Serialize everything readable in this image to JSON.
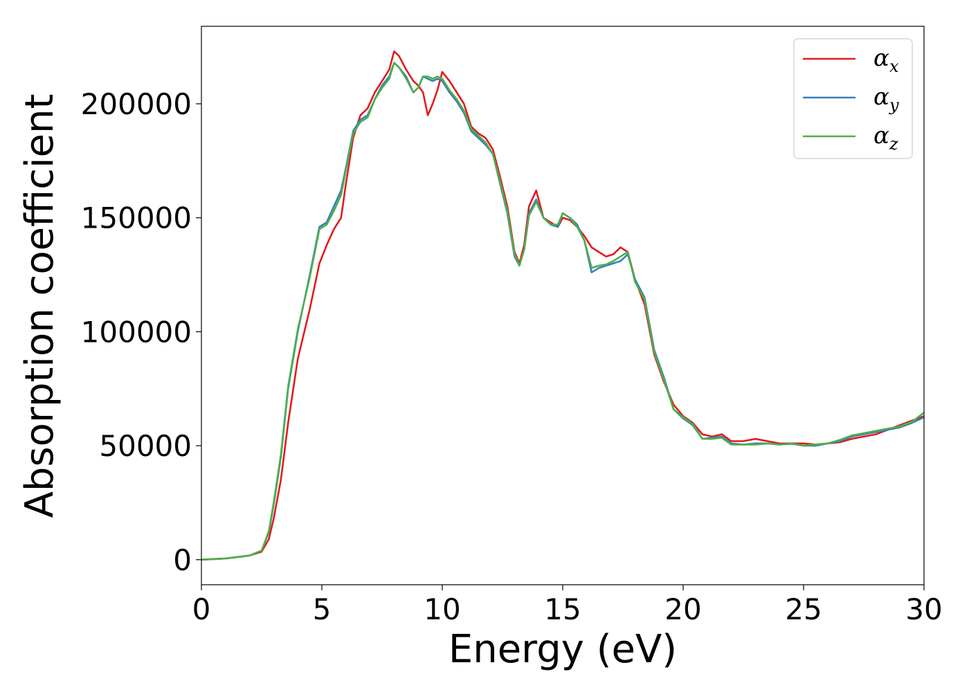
{
  "chart_data": {
    "type": "line",
    "xlabel": "Energy (eV)",
    "ylabel": "Absorption coefficient",
    "xlim": [
      0,
      30
    ],
    "ylim": [
      -11000,
      234000
    ],
    "xticks": [
      0,
      5,
      10,
      15,
      20,
      25,
      30
    ],
    "yticks": [
      0,
      50000,
      100000,
      150000,
      200000
    ],
    "grid": false,
    "legend_position": "top-right",
    "series": [
      {
        "name": "α_x",
        "symbol": "α",
        "subscript": "x",
        "color": "#e41a1c",
        "x": [
          0,
          1,
          2,
          2.5,
          2.8,
          3.0,
          3.3,
          3.6,
          4.0,
          4.5,
          4.9,
          5.2,
          5.5,
          5.8,
          6.0,
          6.3,
          6.6,
          6.9,
          7.2,
          7.5,
          7.8,
          8.0,
          8.2,
          8.5,
          8.8,
          9.0,
          9.2,
          9.4,
          9.6,
          9.8,
          10.0,
          10.3,
          10.6,
          10.9,
          11.2,
          11.5,
          11.8,
          12.1,
          12.4,
          12.7,
          13.0,
          13.2,
          13.4,
          13.6,
          13.9,
          14.2,
          14.5,
          14.8,
          15.0,
          15.3,
          15.6,
          15.9,
          16.2,
          16.5,
          16.8,
          17.1,
          17.4,
          17.7,
          18.0,
          18.4,
          18.8,
          19.2,
          19.6,
          20.0,
          20.4,
          20.8,
          21.2,
          21.6,
          22.0,
          22.5,
          23.0,
          23.5,
          24.0,
          24.5,
          25.0,
          25.5,
          26.0,
          26.5,
          27.0,
          27.5,
          28.0,
          28.5,
          29.0,
          29.5,
          30.0
        ],
        "y": [
          0,
          500,
          1800,
          3500,
          9000,
          18000,
          35000,
          60000,
          88000,
          110000,
          130000,
          138000,
          145000,
          150000,
          165000,
          185000,
          195000,
          198000,
          205000,
          210000,
          215000,
          223000,
          221000,
          215000,
          210000,
          208000,
          205000,
          195000,
          200000,
          206000,
          214000,
          210000,
          205000,
          200000,
          190000,
          187000,
          185000,
          180000,
          168000,
          155000,
          135000,
          130000,
          138000,
          155000,
          162000,
          150000,
          148000,
          146000,
          150000,
          149000,
          146000,
          142000,
          137000,
          135000,
          133000,
          134000,
          137000,
          135000,
          123000,
          112000,
          90000,
          78000,
          68000,
          63000,
          60000,
          55000,
          54000,
          55000,
          52000,
          52000,
          53000,
          52000,
          51000,
          51000,
          51000,
          50500,
          51000,
          51500,
          53000,
          54000,
          55000,
          57000,
          59000,
          61000,
          63000
        ]
      },
      {
        "name": "α_y",
        "symbol": "α",
        "subscript": "y",
        "color": "#377eb8",
        "x": [
          0,
          1,
          2,
          2.5,
          2.8,
          3.0,
          3.3,
          3.6,
          4.0,
          4.5,
          4.9,
          5.2,
          5.5,
          5.8,
          6.0,
          6.3,
          6.6,
          6.9,
          7.2,
          7.5,
          7.8,
          8.0,
          8.2,
          8.5,
          8.8,
          9.0,
          9.2,
          9.4,
          9.6,
          9.8,
          10.0,
          10.3,
          10.6,
          10.9,
          11.2,
          11.5,
          11.8,
          12.1,
          12.4,
          12.7,
          13.0,
          13.2,
          13.4,
          13.6,
          13.9,
          14.2,
          14.5,
          14.8,
          15.0,
          15.3,
          15.6,
          15.9,
          16.2,
          16.5,
          16.8,
          17.1,
          17.4,
          17.7,
          18.0,
          18.4,
          18.8,
          19.2,
          19.6,
          20.0,
          20.4,
          20.8,
          21.2,
          21.6,
          22.0,
          22.5,
          23.0,
          23.5,
          24.0,
          24.5,
          25.0,
          25.5,
          26.0,
          26.5,
          27.0,
          27.5,
          28.0,
          28.5,
          29.0,
          29.5,
          30.0
        ],
        "y": [
          0,
          500,
          1800,
          4000,
          12000,
          24000,
          45000,
          75000,
          100000,
          125000,
          146000,
          148000,
          155000,
          162000,
          172000,
          188000,
          193000,
          195000,
          202000,
          208000,
          212000,
          218000,
          216000,
          212000,
          205000,
          207000,
          212000,
          211000,
          210000,
          211000,
          210000,
          205000,
          201000,
          196000,
          188000,
          185000,
          182000,
          178000,
          165000,
          152000,
          133000,
          129000,
          136000,
          152000,
          158000,
          150000,
          147000,
          146000,
          152000,
          150000,
          147000,
          140000,
          126000,
          128000,
          129000,
          130000,
          131000,
          134000,
          123000,
          115000,
          92000,
          80000,
          66000,
          62000,
          59000,
          53000,
          53500,
          54000,
          51000,
          50500,
          51000,
          51000,
          50500,
          51000,
          50000,
          50000,
          51000,
          52000,
          54000,
          55000,
          56000,
          57000,
          58000,
          60000,
          62500
        ]
      },
      {
        "name": "α_z",
        "symbol": "α",
        "subscript": "z",
        "color": "#4daf4a",
        "x": [
          0,
          1,
          2,
          2.5,
          2.8,
          3.0,
          3.3,
          3.6,
          4.0,
          4.5,
          4.9,
          5.2,
          5.5,
          5.8,
          6.0,
          6.3,
          6.6,
          6.9,
          7.2,
          7.5,
          7.8,
          8.0,
          8.2,
          8.5,
          8.8,
          9.0,
          9.2,
          9.4,
          9.6,
          9.8,
          10.0,
          10.3,
          10.6,
          10.9,
          11.2,
          11.5,
          11.8,
          12.1,
          12.4,
          12.7,
          13.0,
          13.2,
          13.4,
          13.6,
          13.9,
          14.2,
          14.5,
          14.8,
          15.0,
          15.3,
          15.6,
          15.9,
          16.2,
          16.5,
          16.8,
          17.1,
          17.4,
          17.7,
          18.0,
          18.4,
          18.8,
          19.2,
          19.6,
          20.0,
          20.4,
          20.8,
          21.2,
          21.6,
          22.0,
          22.5,
          23.0,
          23.5,
          24.0,
          24.5,
          25.0,
          25.5,
          26.0,
          26.5,
          27.0,
          27.5,
          28.0,
          28.5,
          29.0,
          29.5,
          30.0
        ],
        "y": [
          0,
          500,
          1800,
          4000,
          12500,
          25000,
          46000,
          76000,
          101000,
          124000,
          145000,
          147000,
          153000,
          160000,
          171000,
          187000,
          192000,
          194000,
          202000,
          207000,
          211000,
          218000,
          216000,
          211000,
          205000,
          207000,
          212000,
          212000,
          211000,
          212000,
          211000,
          206000,
          202000,
          197000,
          189000,
          186000,
          183000,
          178000,
          166000,
          153000,
          134000,
          129000,
          136000,
          151000,
          157000,
          150000,
          147000,
          147000,
          152000,
          150000,
          146000,
          140000,
          128000,
          129000,
          129500,
          131000,
          133000,
          135000,
          122000,
          114000,
          91000,
          79000,
          66000,
          62500,
          59500,
          53000,
          53000,
          53500,
          50500,
          50500,
          50500,
          51000,
          50500,
          50800,
          50000,
          50500,
          51000,
          52500,
          54500,
          55500,
          56500,
          57500,
          58500,
          60500,
          64500
        ]
      }
    ]
  }
}
